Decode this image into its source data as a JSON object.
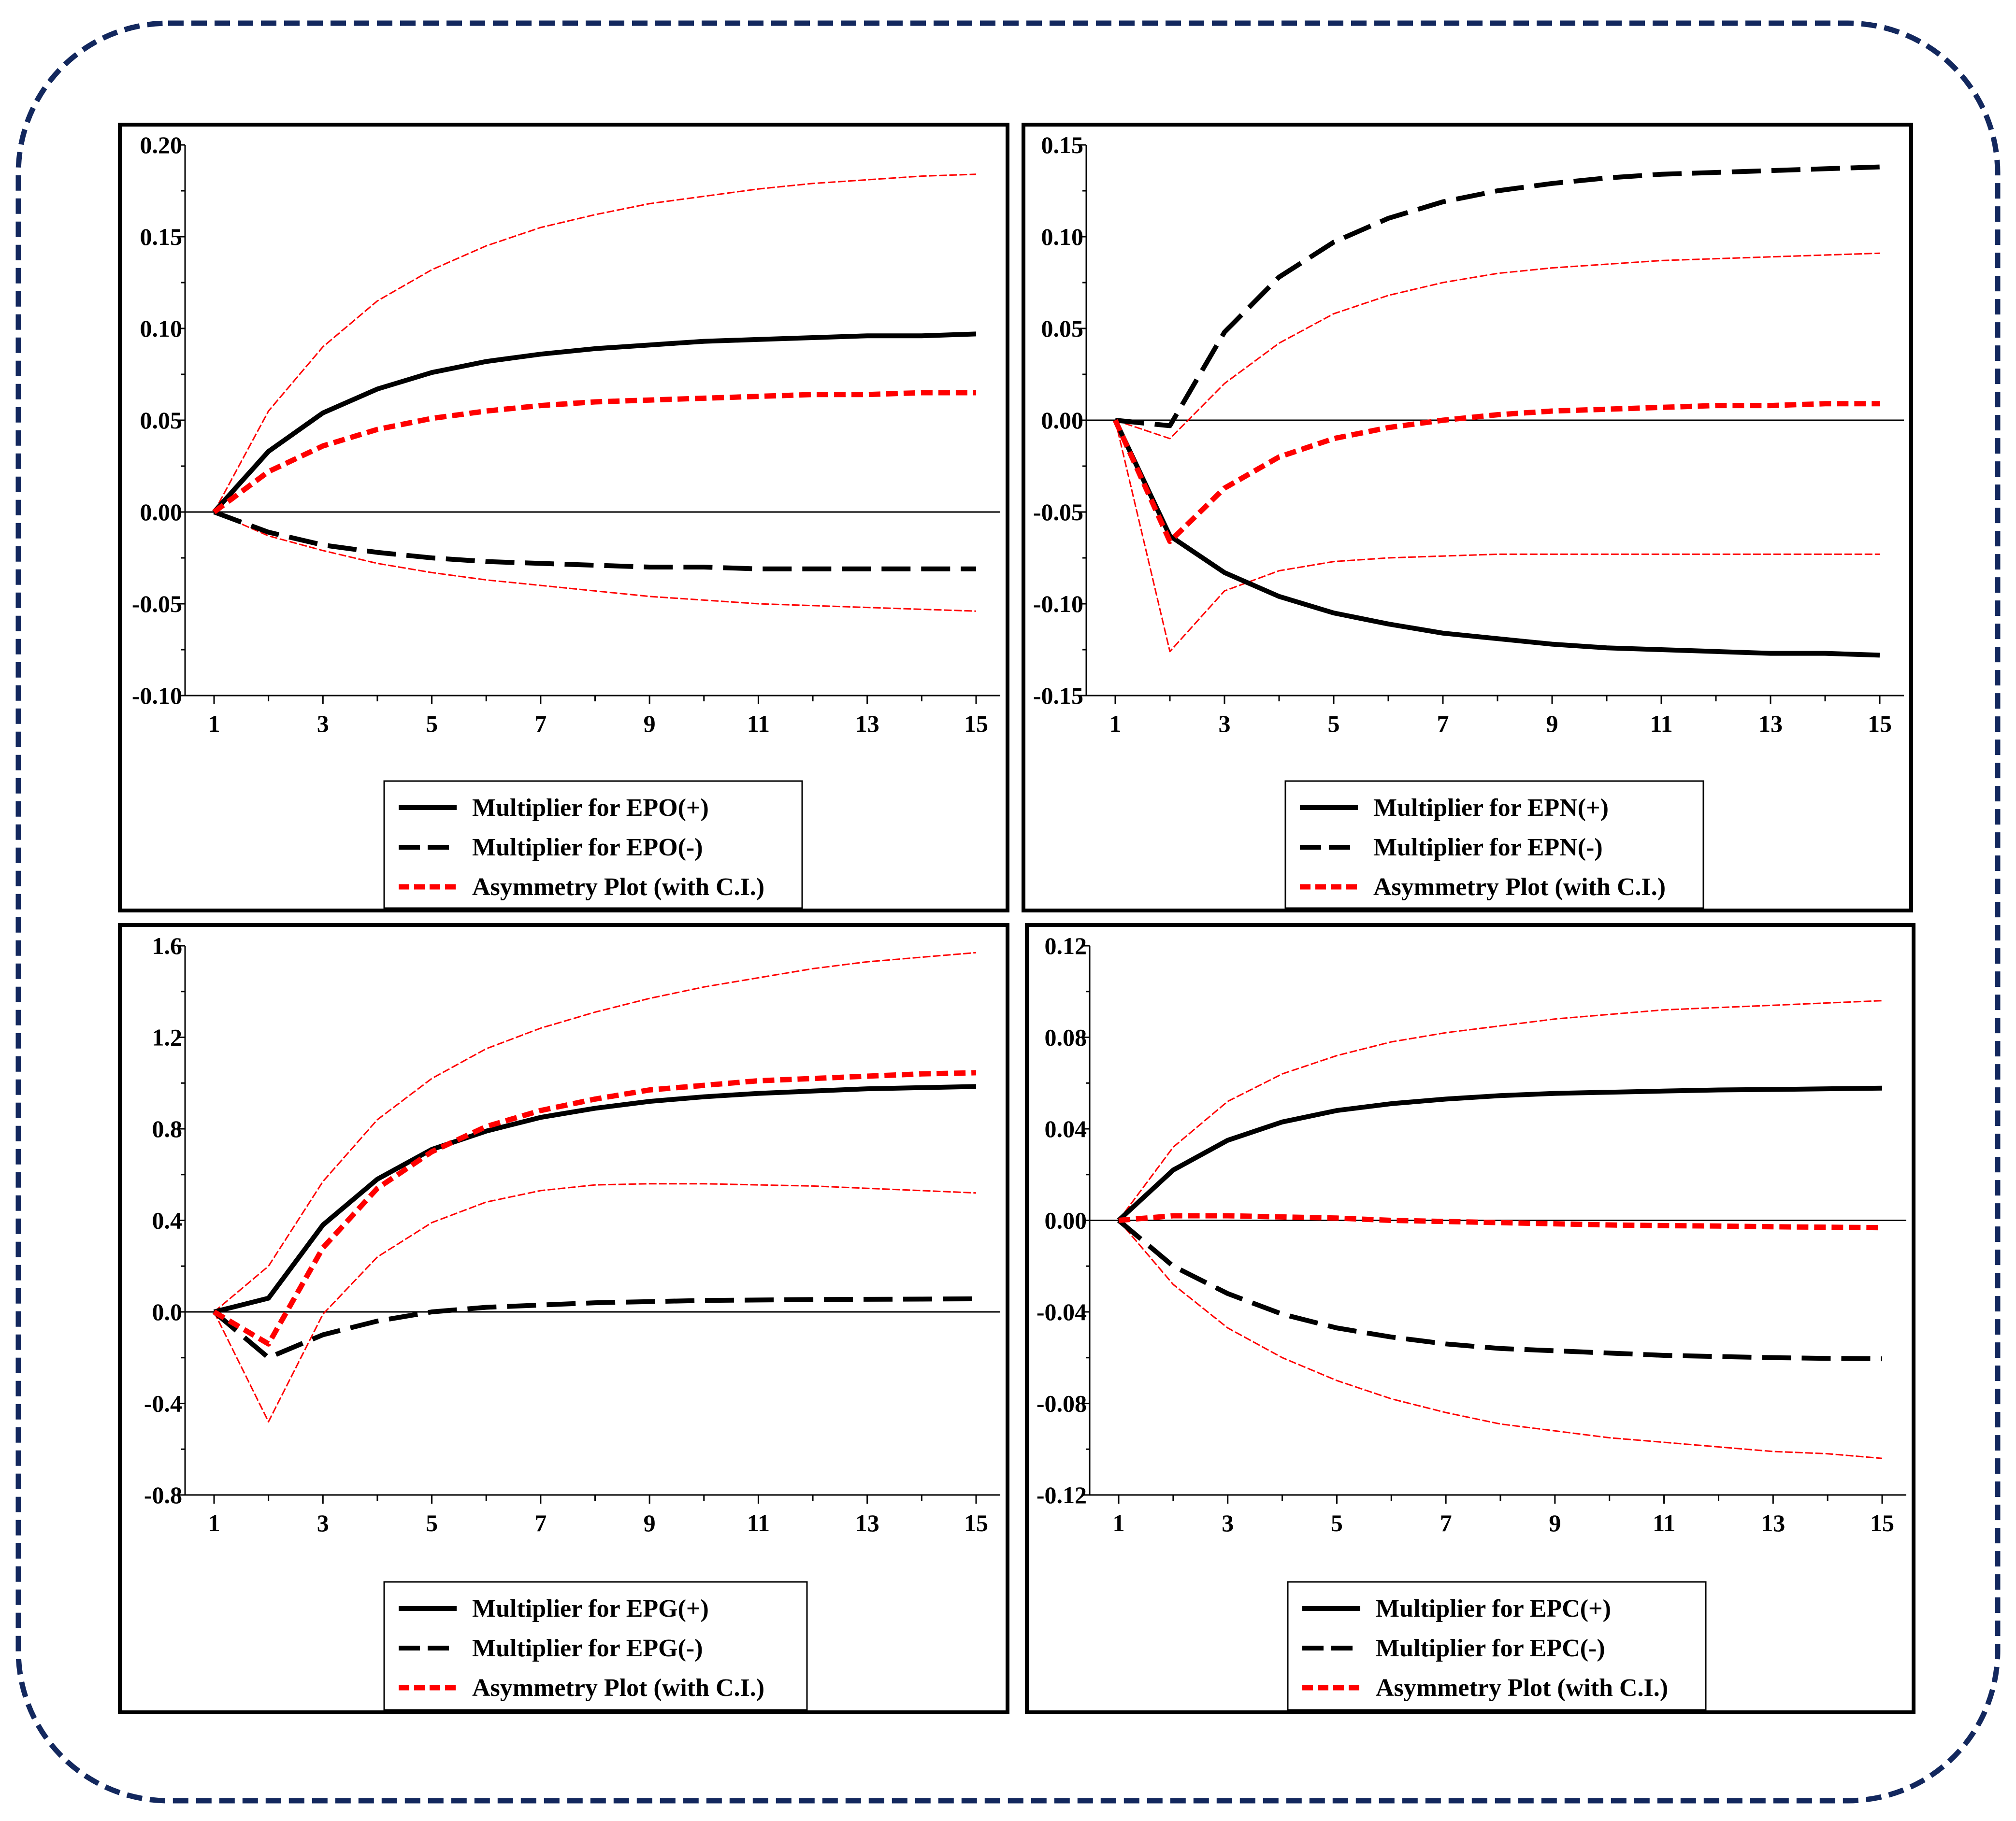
{
  "colors": {
    "frame": "#13285e",
    "black": "#000000",
    "red": "#ff0000"
  },
  "chart_data": [
    {
      "type": "line",
      "x": [
        1,
        2,
        3,
        4,
        5,
        6,
        7,
        8,
        9,
        10,
        11,
        12,
        13,
        14,
        15
      ],
      "xticks": [
        "1",
        "3",
        "5",
        "7",
        "9",
        "11",
        "13",
        "15"
      ],
      "ylim": [
        -0.1,
        0.2
      ],
      "yticks": [
        "0.20",
        "0.15",
        "0.10",
        "0.05",
        "0.00",
        "-0.05",
        "-0.10"
      ],
      "legend": [
        "Multiplier for EPO(+)",
        "Multiplier for EPO(-)",
        "Asymmetry Plot (with C.I.)"
      ],
      "legend_placement": "bottom-center",
      "series": [
        {
          "style": "solid-black",
          "values": [
            0,
            0.033,
            0.054,
            0.067,
            0.076,
            0.082,
            0.086,
            0.089,
            0.091,
            0.093,
            0.094,
            0.095,
            0.096,
            0.096,
            0.097
          ]
        },
        {
          "style": "dash-black",
          "values": [
            0,
            -0.011,
            -0.018,
            -0.022,
            -0.025,
            -0.027,
            -0.028,
            -0.029,
            -0.03,
            -0.03,
            -0.031,
            -0.031,
            -0.031,
            -0.031,
            -0.031
          ]
        },
        {
          "style": "dash-red",
          "values": [
            0,
            0.022,
            0.036,
            0.045,
            0.051,
            0.055,
            0.058,
            0.06,
            0.061,
            0.062,
            0.063,
            0.064,
            0.064,
            0.065,
            0.065
          ]
        },
        {
          "style": "thin-red",
          "values": [
            0,
            0.055,
            0.09,
            0.115,
            0.132,
            0.145,
            0.155,
            0.162,
            0.168,
            0.172,
            0.176,
            0.179,
            0.181,
            0.183,
            0.184
          ]
        },
        {
          "style": "thin-red",
          "values": [
            0,
            -0.013,
            -0.021,
            -0.028,
            -0.033,
            -0.037,
            -0.04,
            -0.043,
            -0.046,
            -0.048,
            -0.05,
            -0.051,
            -0.052,
            -0.053,
            -0.054
          ]
        }
      ]
    },
    {
      "type": "line",
      "x": [
        1,
        2,
        3,
        4,
        5,
        6,
        7,
        8,
        9,
        10,
        11,
        12,
        13,
        14,
        15
      ],
      "xticks": [
        "1",
        "3",
        "5",
        "7",
        "9",
        "11",
        "13",
        "15"
      ],
      "ylim": [
        -0.15,
        0.15
      ],
      "yticks": [
        "0.15",
        "0.10",
        "0.05",
        "0.00",
        "-0.05",
        "-0.10",
        "-0.15"
      ],
      "legend": [
        "Multiplier for EPN(+)",
        "Multiplier for EPN(-)",
        "Asymmetry Plot (with C.I.)"
      ],
      "legend_placement": "bottom-center",
      "series": [
        {
          "style": "solid-black",
          "values": [
            0,
            -0.063,
            -0.083,
            -0.096,
            -0.105,
            -0.111,
            -0.116,
            -0.119,
            -0.122,
            -0.124,
            -0.125,
            -0.126,
            -0.127,
            -0.127,
            -0.128
          ]
        },
        {
          "style": "dash-black",
          "values": [
            0,
            -0.003,
            0.048,
            0.078,
            0.097,
            0.11,
            0.119,
            0.125,
            0.129,
            0.132,
            0.134,
            0.135,
            0.136,
            0.137,
            0.138
          ]
        },
        {
          "style": "dash-red",
          "values": [
            0,
            -0.066,
            -0.037,
            -0.02,
            -0.01,
            -0.004,
            0.0,
            0.003,
            0.005,
            0.006,
            0.007,
            0.008,
            0.008,
            0.009,
            0.009
          ]
        },
        {
          "style": "thin-red",
          "values": [
            0,
            -0.01,
            0.02,
            0.042,
            0.058,
            0.068,
            0.075,
            0.08,
            0.083,
            0.085,
            0.087,
            0.088,
            0.089,
            0.09,
            0.091
          ]
        },
        {
          "style": "thin-red",
          "values": [
            0,
            -0.126,
            -0.093,
            -0.082,
            -0.077,
            -0.075,
            -0.074,
            -0.073,
            -0.073,
            -0.073,
            -0.073,
            -0.073,
            -0.073,
            -0.073,
            -0.073
          ]
        }
      ]
    },
    {
      "type": "line",
      "x": [
        1,
        2,
        3,
        4,
        5,
        6,
        7,
        8,
        9,
        10,
        11,
        12,
        13,
        14,
        15
      ],
      "xticks": [
        "1",
        "3",
        "5",
        "7",
        "9",
        "11",
        "13",
        "15"
      ],
      "ylim": [
        -0.8,
        1.6
      ],
      "yticks": [
        "1.6",
        "1.2",
        "0.8",
        "0.4",
        "0.0",
        "-0.4",
        "-0.8"
      ],
      "legend": [
        "Multiplier for EPG(+)",
        "Multiplier for EPG(-)",
        "Asymmetry Plot (with C.I.)"
      ],
      "legend_placement": "bottom-center",
      "series": [
        {
          "style": "solid-black",
          "values": [
            0,
            0.06,
            0.38,
            0.58,
            0.71,
            0.79,
            0.85,
            0.89,
            0.92,
            0.94,
            0.955,
            0.965,
            0.975,
            0.98,
            0.985
          ]
        },
        {
          "style": "dash-black",
          "values": [
            0,
            -0.2,
            -0.1,
            -0.04,
            0.0,
            0.02,
            0.03,
            0.04,
            0.045,
            0.05,
            0.052,
            0.054,
            0.055,
            0.056,
            0.057
          ]
        },
        {
          "style": "dash-red",
          "values": [
            0,
            -0.14,
            0.28,
            0.54,
            0.7,
            0.81,
            0.88,
            0.93,
            0.97,
            0.99,
            1.01,
            1.02,
            1.03,
            1.04,
            1.045
          ]
        },
        {
          "style": "thin-red",
          "values": [
            0,
            0.2,
            0.57,
            0.84,
            1.02,
            1.15,
            1.24,
            1.31,
            1.37,
            1.42,
            1.46,
            1.5,
            1.53,
            1.55,
            1.57
          ]
        },
        {
          "style": "thin-red",
          "values": [
            0,
            -0.48,
            -0.01,
            0.24,
            0.39,
            0.48,
            0.53,
            0.555,
            0.56,
            0.56,
            0.555,
            0.55,
            0.54,
            0.53,
            0.52
          ]
        }
      ]
    },
    {
      "type": "line",
      "x": [
        1,
        2,
        3,
        4,
        5,
        6,
        7,
        8,
        9,
        10,
        11,
        12,
        13,
        14,
        15
      ],
      "xticks": [
        "1",
        "3",
        "5",
        "7",
        "9",
        "11",
        "13",
        "15"
      ],
      "ylim": [
        -0.12,
        0.12
      ],
      "yticks": [
        "0.12",
        "0.08",
        "0.04",
        "0.00",
        "-0.04",
        "-0.08",
        "-0.12"
      ],
      "legend": [
        "Multiplier for EPC(+)",
        "Multiplier for EPC(-)",
        "Asymmetry Plot (with C.I.)"
      ],
      "legend_placement": "bottom-center",
      "series": [
        {
          "style": "solid-black",
          "values": [
            0,
            0.022,
            0.035,
            0.043,
            0.048,
            0.051,
            0.053,
            0.0545,
            0.0555,
            0.056,
            0.0565,
            0.057,
            0.0572,
            0.0575,
            0.0578
          ]
        },
        {
          "style": "dash-black",
          "values": [
            0,
            -0.02,
            -0.032,
            -0.041,
            -0.047,
            -0.051,
            -0.054,
            -0.056,
            -0.057,
            -0.058,
            -0.059,
            -0.0595,
            -0.06,
            -0.0603,
            -0.0605
          ]
        },
        {
          "style": "dash-red",
          "values": [
            0,
            0.002,
            0.002,
            0.0015,
            0.001,
            0.0,
            -0.0005,
            -0.001,
            -0.0015,
            -0.002,
            -0.0023,
            -0.0025,
            -0.0028,
            -0.003,
            -0.0032
          ]
        },
        {
          "style": "thin-red",
          "values": [
            0,
            0.032,
            0.052,
            0.064,
            0.072,
            0.078,
            0.082,
            0.085,
            0.088,
            0.09,
            0.092,
            0.093,
            0.094,
            0.095,
            0.096
          ]
        },
        {
          "style": "thin-red",
          "values": [
            0,
            -0.028,
            -0.047,
            -0.06,
            -0.07,
            -0.078,
            -0.084,
            -0.089,
            -0.092,
            -0.095,
            -0.097,
            -0.099,
            -0.101,
            -0.102,
            -0.104
          ]
        }
      ]
    }
  ]
}
